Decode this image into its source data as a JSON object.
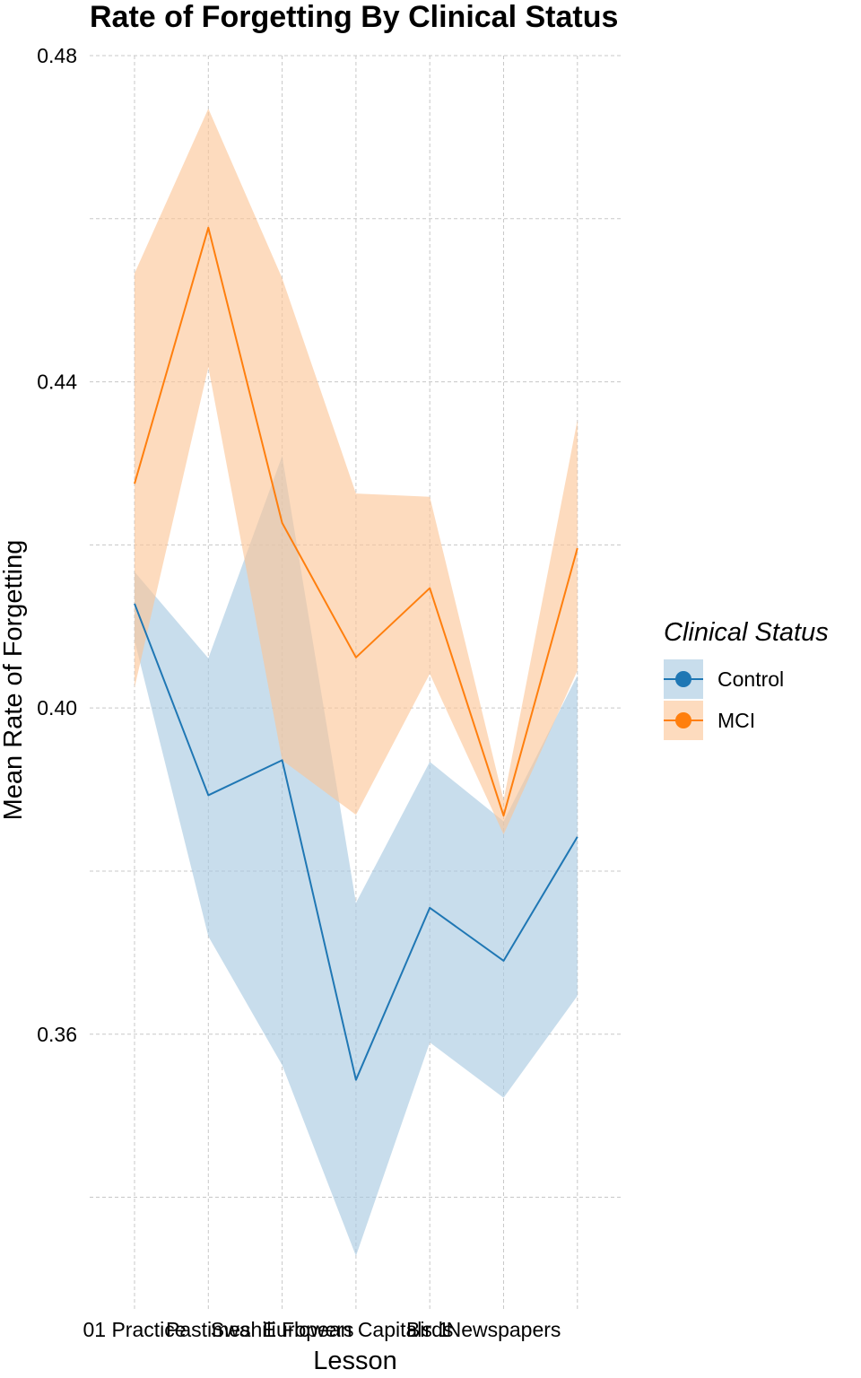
{
  "chart_data": {
    "type": "line",
    "title": "Rate of Forgetting By Clinical Status",
    "xlabel": "Lesson",
    "ylabel": "Mean Rate of Forgetting",
    "categories": [
      "01 Practice",
      "Pastimes",
      "Swahili Flowers",
      "European Capitals 1",
      "Birds",
      "Newspapers",
      ""
    ],
    "x_tick_labels": [
      "01 Practice",
      "Pastimes",
      "Swahili Flowers",
      "European Capitals 1",
      "Birds",
      "Newspapers"
    ],
    "y_ticks": [
      0.36,
      0.4,
      0.44,
      0.48
    ],
    "y_tick_labels": [
      "0.36",
      "0.40",
      "0.44",
      "0.48"
    ],
    "ylim": [
      0.3262,
      0.48
    ],
    "grid": true,
    "legend": {
      "title": "Clinical Status",
      "position": "right"
    },
    "series": [
      {
        "name": "Control",
        "color": "#1f77b4",
        "ribbon_color": "#a6c8e1",
        "values": [
          0.4128,
          0.3893,
          0.3936,
          0.3544,
          0.3755,
          0.369,
          0.3842
        ],
        "lower": [
          0.4083,
          0.372,
          0.3562,
          0.3328,
          0.359,
          0.3522,
          0.3647
        ],
        "upper": [
          0.4167,
          0.4061,
          0.4309,
          0.3761,
          0.3934,
          0.3861,
          0.404
        ]
      },
      {
        "name": "MCI",
        "color": "#ff7f0e",
        "ribbon_color": "#fbc596",
        "values": [
          0.4275,
          0.4589,
          0.4227,
          0.4062,
          0.4147,
          0.3868,
          0.4196
        ],
        "lower": [
          0.4025,
          0.4418,
          0.3936,
          0.3869,
          0.4042,
          0.3845,
          0.4046
        ],
        "upper": [
          0.4533,
          0.4735,
          0.4527,
          0.4263,
          0.4259,
          0.3887,
          0.4353
        ]
      }
    ]
  }
}
